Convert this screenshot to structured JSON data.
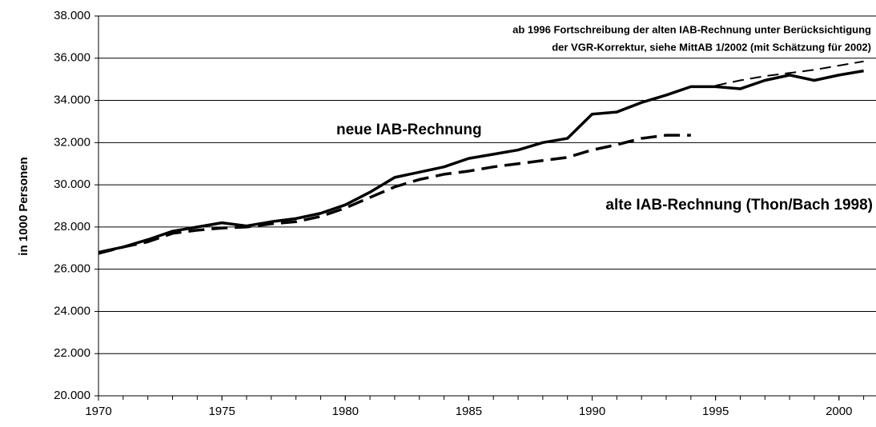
{
  "chart_data": {
    "type": "line",
    "y_label": "in 1000 Personen",
    "annotations": [
      "ab 1996 Fortschreibung der alten IAB-Rechnung unter Berücksichtigung",
      "der VGR-Korrektur, siehe MittAB 1/2002 (mit Schätzung für 2002)"
    ],
    "x": [
      1970,
      1971,
      1972,
      1973,
      1974,
      1975,
      1976,
      1977,
      1978,
      1979,
      1980,
      1981,
      1982,
      1983,
      1984,
      1985,
      1986,
      1987,
      1988,
      1989,
      1990,
      1991,
      1992,
      1993,
      1994,
      1995,
      1996,
      1997,
      1998,
      1999,
      2000,
      2001
    ],
    "series": [
      {
        "name": "neue IAB-Rechnung",
        "color": "#000000",
        "dash": "solid",
        "values": [
          26800,
          27050,
          27400,
          27800,
          28000,
          28200,
          28050,
          28250,
          28400,
          28650,
          29050,
          29650,
          30350,
          30600,
          30850,
          31250,
          31450,
          31650,
          32000,
          32200,
          33350,
          33450,
          33900,
          34250,
          34650,
          34650,
          34550,
          34950,
          35200,
          34950,
          35200,
          35400
        ]
      },
      {
        "name": "alte IAB-Rechnung (Thon/Bach 1998)",
        "color": "#000000",
        "dash": "long",
        "values": [
          26750,
          27050,
          27300,
          27700,
          27850,
          27950,
          28000,
          28150,
          28250,
          28500,
          28900,
          29400,
          29900,
          30250,
          30500,
          30650,
          30850,
          31000,
          31150,
          31300,
          31650,
          31900,
          32200,
          32350,
          32350,
          null,
          null,
          null,
          null,
          null,
          null,
          null
        ]
      },
      {
        "color": "#000000",
        "dash": "short",
        "values": [
          null,
          null,
          null,
          null,
          null,
          null,
          null,
          null,
          null,
          null,
          null,
          null,
          null,
          null,
          null,
          null,
          null,
          null,
          null,
          null,
          null,
          null,
          null,
          null,
          null,
          34700,
          34950,
          35150,
          35300,
          35450,
          35650,
          35850
        ]
      }
    ],
    "xlim": [
      1970,
      2001.5
    ],
    "xticks": [
      1970,
      1975,
      1980,
      1985,
      1990,
      1995,
      2000
    ],
    "ylim": [
      20000,
      38000
    ],
    "yticks": [
      {
        "value": 20000,
        "label": "20.000"
      },
      {
        "value": 22000,
        "label": "22.000"
      },
      {
        "value": 24000,
        "label": "24.000"
      },
      {
        "value": 26000,
        "label": "26.000"
      },
      {
        "value": 28000,
        "label": "28.000"
      },
      {
        "value": 30000,
        "label": "30.000"
      },
      {
        "value": 32000,
        "label": "32.000"
      },
      {
        "value": 34000,
        "label": "34.000"
      },
      {
        "value": 36000,
        "label": "36.000"
      },
      {
        "value": 38000,
        "label": "38.000"
      }
    ],
    "grid": true
  }
}
